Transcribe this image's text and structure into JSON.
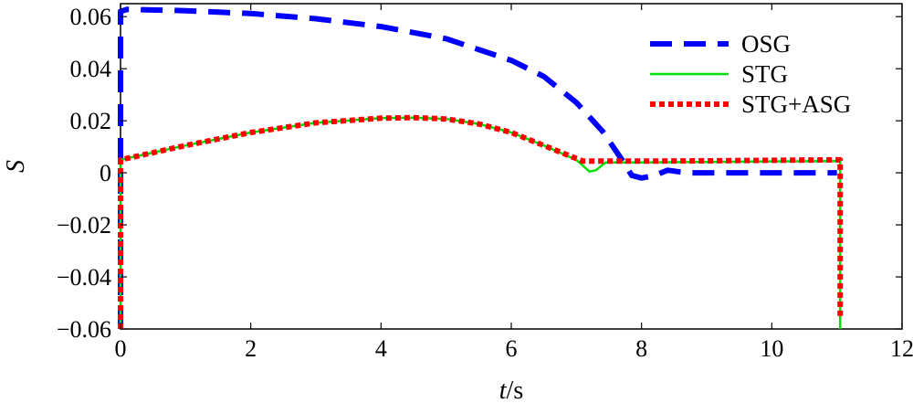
{
  "chart_data": {
    "type": "line",
    "xlabel_var": "t",
    "xlabel_unit": "/s",
    "ylabel": "S",
    "xlim": [
      0,
      12
    ],
    "ylim": [
      -0.06,
      0.065
    ],
    "xticks": [
      0,
      2,
      4,
      6,
      8,
      10,
      12
    ],
    "yticks": [
      {
        "value": 0.06,
        "label": "0.06"
      },
      {
        "value": 0.04,
        "label": "0.04"
      },
      {
        "value": 0.02,
        "label": "0.02"
      },
      {
        "value": 0,
        "label": "0"
      },
      {
        "value": -0.02,
        "label": "−0.02"
      },
      {
        "value": -0.04,
        "label": "−0.04"
      },
      {
        "value": -0.06,
        "label": "−0.06"
      }
    ],
    "grid": false,
    "legend_position": "top-right",
    "series": [
      {
        "name": "OSG",
        "color": "#0000ff",
        "style": "dashed",
        "points": [
          [
            0,
            -0.06
          ],
          [
            0,
            0.062
          ],
          [
            0.1,
            0.0628
          ],
          [
            1,
            0.0623
          ],
          [
            2,
            0.0612
          ],
          [
            3,
            0.0592
          ],
          [
            4,
            0.0562
          ],
          [
            5,
            0.0515
          ],
          [
            6,
            0.0432
          ],
          [
            6.5,
            0.037
          ],
          [
            7,
            0.027
          ],
          [
            7.4,
            0.016
          ],
          [
            7.7,
            0.005
          ],
          [
            7.85,
            -0.001
          ],
          [
            8.0,
            -0.002
          ],
          [
            8.2,
            -0.001
          ],
          [
            8.4,
            0.001
          ],
          [
            8.7,
            0.0
          ],
          [
            9,
            0.0
          ],
          [
            10,
            0.0
          ],
          [
            11.0,
            0.0
          ]
        ]
      },
      {
        "name": "STG",
        "color": "#00dd00",
        "style": "solid",
        "points": [
          [
            0,
            -0.06
          ],
          [
            0,
            0.005
          ],
          [
            1,
            0.0105
          ],
          [
            2,
            0.0155
          ],
          [
            3,
            0.0192
          ],
          [
            4,
            0.021
          ],
          [
            4.5,
            0.0212
          ],
          [
            5,
            0.0207
          ],
          [
            5.5,
            0.0188
          ],
          [
            6,
            0.0155
          ],
          [
            6.5,
            0.0105
          ],
          [
            7.0,
            0.005
          ],
          [
            7.2,
            0.0005
          ],
          [
            7.3,
            0.001
          ],
          [
            7.45,
            0.004
          ],
          [
            8,
            0.004
          ],
          [
            9,
            0.0042
          ],
          [
            10,
            0.0044
          ],
          [
            11.05,
            0.0045
          ],
          [
            11.05,
            -0.06
          ]
        ]
      },
      {
        "name": "STG+ASG",
        "color": "#ff0000",
        "style": "dotted",
        "points": [
          [
            0,
            -0.06
          ],
          [
            0,
            0.005
          ],
          [
            1,
            0.0105
          ],
          [
            2,
            0.0155
          ],
          [
            3,
            0.0192
          ],
          [
            4,
            0.021
          ],
          [
            4.5,
            0.0212
          ],
          [
            5,
            0.0207
          ],
          [
            5.5,
            0.0188
          ],
          [
            6,
            0.0155
          ],
          [
            6.5,
            0.0105
          ],
          [
            7.0,
            0.0055
          ],
          [
            7.1,
            0.0045
          ],
          [
            8,
            0.0045
          ],
          [
            9,
            0.0046
          ],
          [
            10,
            0.0048
          ],
          [
            11.05,
            0.005
          ],
          [
            11.05,
            -0.055
          ]
        ]
      }
    ]
  }
}
